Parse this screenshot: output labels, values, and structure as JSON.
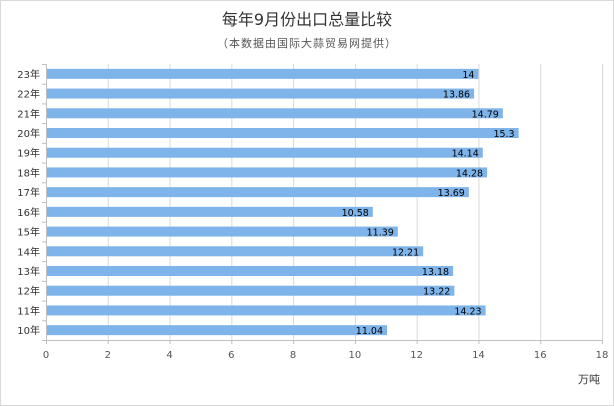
{
  "chart_data": {
    "type": "bar",
    "orientation": "horizontal",
    "title": "每年9月份出口总量比较",
    "subtitle": "（本数据由国际大蒜贸易网提供）",
    "categories": [
      "23年",
      "22年",
      "21年",
      "20年",
      "19年",
      "18年",
      "17年",
      "16年",
      "15年",
      "14年",
      "13年",
      "12年",
      "11年",
      "10年"
    ],
    "values": [
      14,
      13.86,
      14.79,
      15.3,
      14.14,
      14.28,
      13.69,
      10.58,
      11.39,
      12.21,
      13.18,
      13.22,
      14.23,
      11.04
    ],
    "value_labels": [
      "14",
      "13.86",
      "14.79",
      "15.3",
      "14.14",
      "14.28",
      "13.69",
      "10.58",
      "11.39",
      "12.21",
      "13.18",
      "13.22",
      "14.23",
      "11.04"
    ],
    "xlim": [
      0,
      18
    ],
    "xticks": [
      "0",
      "2",
      "4",
      "6",
      "8",
      "10",
      "12",
      "14",
      "16",
      "18"
    ],
    "xlabel": "万吨",
    "ylabel": "",
    "grid": true,
    "bar_color": "#7eb4ea"
  }
}
